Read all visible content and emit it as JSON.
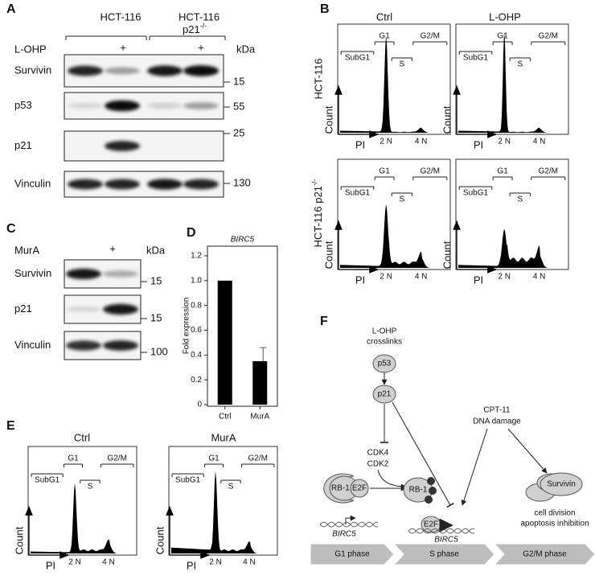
{
  "panel_labels": [
    "A",
    "B",
    "C",
    "D",
    "E",
    "F"
  ],
  "panel_a": {
    "cell_line": "HCT-116",
    "knockout": "p21",
    "knockout_sup": "-/-",
    "treatment": "L-OHP",
    "treated_mark": "+",
    "unit": "kDa",
    "blots": [
      {
        "protein": "Survivin",
        "kda": 15
      },
      {
        "protein": "p53",
        "kda": 55
      },
      {
        "protein": "p21",
        "kda": 25
      },
      {
        "protein": "Vinculin",
        "kda": 130
      }
    ]
  },
  "panel_b": {
    "conditions": [
      "Ctrl",
      "L-OHP"
    ],
    "cell_line": "HCT-116",
    "knockout": "HCT-116 p21",
    "knockout_sup": "-/-"
  },
  "flow": {
    "gates": [
      "SubG1",
      "G1",
      "S",
      "G2/M"
    ],
    "peaks": [
      "2 N",
      "4 N"
    ],
    "y_axis": "Count",
    "x_axis": "PI"
  },
  "panel_c": {
    "treatment": "MurA",
    "treated_mark": "+",
    "unit": "kDa",
    "blots": [
      {
        "protein": "Survivin",
        "kda": 15
      },
      {
        "protein": "p21",
        "kda": 15
      },
      {
        "protein": "Vinculin",
        "kda": 100
      }
    ]
  },
  "chart_data": {
    "type": "bar",
    "title": "BIRC5",
    "y_label": "Fold expression",
    "categories": [
      "Ctrl",
      "MurA"
    ],
    "values": [
      1.0,
      0.35
    ],
    "errors": [
      null,
      0.11
    ],
    "color": "#000000",
    "ylim": [
      0,
      1.2
    ],
    "yticks": [
      0,
      0.2,
      0.4,
      0.6,
      0.8,
      {
        "value": 1,
        "label": "1.0"
      },
      1.2
    ]
  },
  "panel_e": {
    "conditions": [
      "Ctrl",
      "MurA"
    ]
  },
  "panel_f": {
    "stimulus_1": [
      "L-OHP",
      "crosslinks"
    ],
    "p53": "p53",
    "p21": "p21",
    "cdk": [
      "CDK4",
      "CDK2"
    ],
    "stimulus_2": [
      "CPT-11",
      "DNA damage"
    ],
    "rb": "RB-1",
    "e2f": "E2F",
    "gene": "BIRC5",
    "survivin": "Survivin",
    "outcome": [
      "cell division",
      "apoptosis inhibition"
    ],
    "phases": [
      "G1 phase",
      "S phase",
      "G2/M phase"
    ]
  }
}
